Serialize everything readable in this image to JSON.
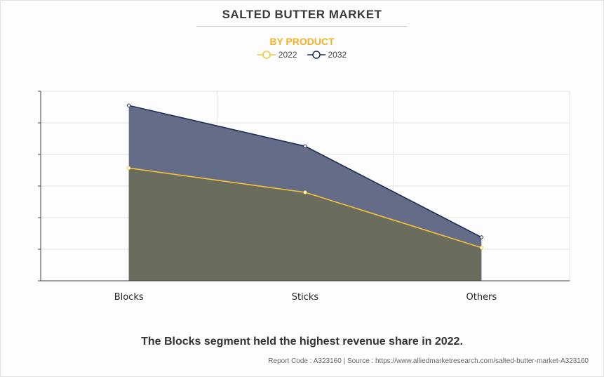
{
  "chart_data": {
    "type": "area",
    "title": "SALTED BUTTER MARKET",
    "subtitle": "BY PRODUCT",
    "categories": [
      "Blocks",
      "Sticks",
      "Others"
    ],
    "series": [
      {
        "name": "2022",
        "values": [
          3.57,
          2.8,
          1.05
        ],
        "color": "#f5c338",
        "fill": "#6a6d5e"
      },
      {
        "name": "2032",
        "values": [
          5.55,
          4.26,
          1.38
        ],
        "color": "#1e2f57",
        "fill": "#646c88"
      }
    ],
    "ylim": [
      0,
      6
    ],
    "grid": true,
    "legend_position": "top-center"
  },
  "caption": "The Blocks segment held the highest revenue share in 2022.",
  "footer": "Report Code : A323160  |  Source : https://www.alliedmarketresearch.com/salted-butter-market-A323160"
}
